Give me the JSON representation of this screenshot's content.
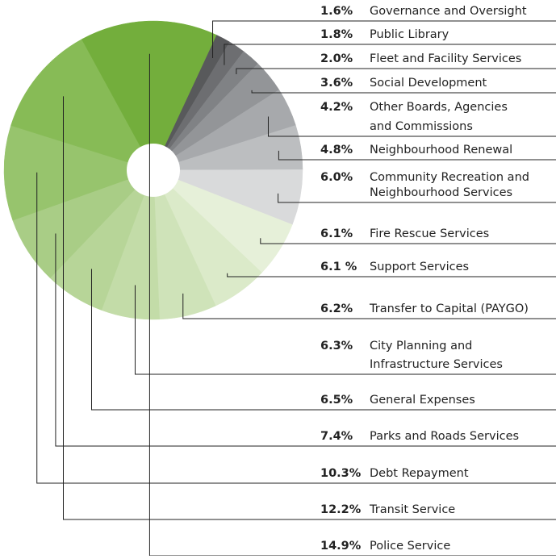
{
  "chart_data": {
    "type": "pie",
    "categories": [
      "Governance and Oversight",
      "Public Library",
      "Fleet and Facility Services",
      "Social Development",
      "Other Boards, Agencies\nand Commissions",
      "Neighbourhood Renewal",
      "Community Recreation and\nNeighbourhood Services",
      "Fire Rescue Services",
      "Support Services",
      "Transfer to Capital (PAYGO)",
      "City Planning and\nInfrastructure Services",
      "General Expenses",
      "Parks and Roads Services",
      "Debt Repayment",
      "Transit Service",
      "Police Service"
    ],
    "values": [
      1.6,
      1.8,
      2.0,
      3.6,
      4.2,
      4.8,
      6.0,
      6.1,
      6.1,
      6.2,
      6.3,
      6.5,
      7.4,
      10.3,
      12.2,
      14.9
    ],
    "value_labels": [
      "1.6%",
      "1.8%",
      "2.0%",
      "3.6%",
      "4.2%",
      "4.8%",
      "6.0%",
      "6.1%",
      "6.1 %",
      "6.2%",
      "6.3%",
      "6.5%",
      "7.4%",
      "10.3%",
      "12.2%",
      "14.9%"
    ],
    "colors": [
      "#58595b",
      "#6d6e71",
      "#808285",
      "#939598",
      "#a7a9ac",
      "#bcbec0",
      "#d9dadb",
      "#e6f0d9",
      "#dbeac9",
      "#cfe3b9",
      "#c3dca8",
      "#b7d598",
      "#a9cd86",
      "#97c46d",
      "#87bb56",
      "#73ae3c"
    ]
  }
}
